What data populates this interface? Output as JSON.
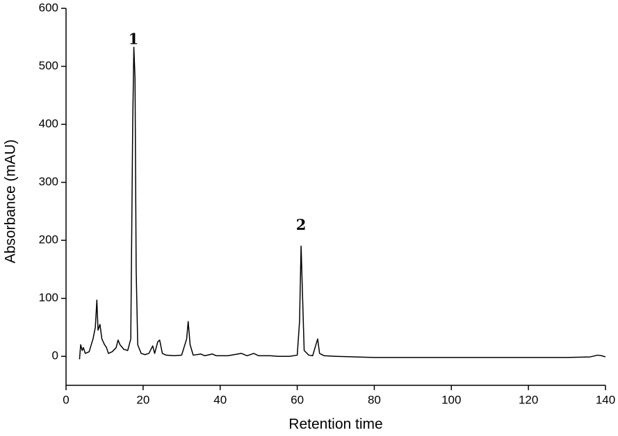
{
  "chart_data": {
    "type": "line",
    "x_label": "Retention time",
    "y_label": "Absorbance (mAU)",
    "x": [
      3.5,
      3.8,
      4.2,
      4.5,
      5,
      6,
      7,
      7.6,
      8,
      8.3,
      8.8,
      9.3,
      10,
      10.5,
      11,
      12,
      13,
      13.5,
      14,
      15,
      16,
      16.8,
      17.3,
      17.6,
      17.9,
      18.2,
      18.6,
      19.5,
      20.5,
      21.5,
      22.5,
      23,
      23.8,
      24.3,
      25,
      26,
      28,
      30,
      31.3,
      31.7,
      32.2,
      33,
      35,
      36,
      38,
      39,
      42,
      45.5,
      47,
      48.7,
      50,
      53,
      55,
      58,
      60,
      60.6,
      61,
      61.4,
      61.8,
      63,
      64,
      65.3,
      65.8,
      67,
      70,
      75,
      80,
      90,
      100,
      110,
      120,
      130,
      136,
      138,
      139,
      140
    ],
    "values": [
      -5,
      20,
      10,
      15,
      5,
      8,
      30,
      50,
      97,
      45,
      55,
      30,
      20,
      15,
      5,
      8,
      15,
      28,
      20,
      12,
      10,
      30,
      400,
      533,
      480,
      150,
      20,
      5,
      3,
      5,
      18,
      5,
      25,
      28,
      5,
      2,
      1,
      2,
      30,
      60,
      20,
      2,
      4,
      1,
      4,
      1,
      1,
      5,
      1,
      5,
      1,
      1,
      0,
      0,
      2,
      60,
      190,
      100,
      10,
      2,
      1,
      30,
      5,
      1,
      0,
      -1,
      -2,
      -2,
      -2,
      -2,
      -2,
      -2,
      -1,
      2,
      1,
      -1
    ],
    "color": "#000000",
    "xlim": [
      0,
      140
    ],
    "xticks": [
      0,
      20,
      40,
      60,
      80,
      100,
      120,
      140
    ],
    "ylim": [
      -50,
      600
    ],
    "yticks": [
      0,
      100,
      200,
      300,
      400,
      500,
      600
    ],
    "annotations": [
      {
        "text": "1",
        "x": 17.5,
        "y": 545
      },
      {
        "text": "2",
        "x": 61,
        "y": 225
      }
    ]
  }
}
